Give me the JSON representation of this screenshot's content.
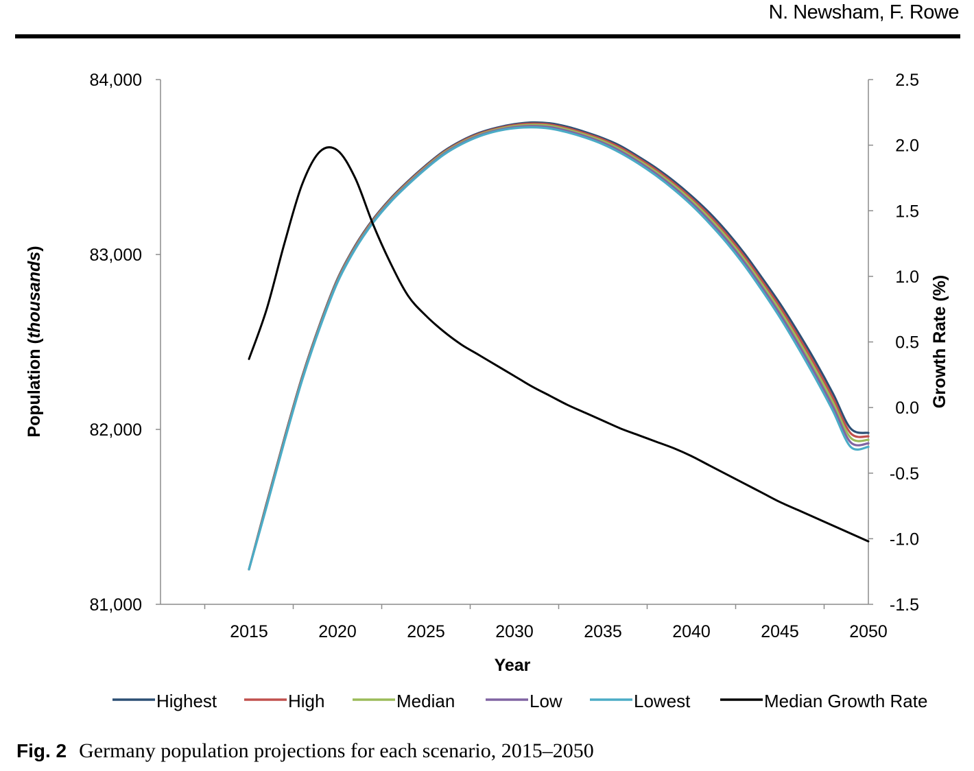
{
  "header": {
    "authors": "N. Newsham, F. Rowe"
  },
  "caption": {
    "fig": "Fig. 2",
    "text": "Germany population projections for each scenario, 2015–2050"
  },
  "chart_data": {
    "type": "line",
    "xlabel": "Year",
    "ylabel_left_main": "Population ",
    "ylabel_left_italic": "thousands",
    "ylabel_right": "Growth Rate (%)",
    "xlim": [
      2010,
      2050
    ],
    "ylim_left": [
      81000,
      84000
    ],
    "ylim_right": [
      -1.5,
      2.5
    ],
    "x_ticks": [
      2015,
      2020,
      2025,
      2030,
      2035,
      2040,
      2045,
      2050
    ],
    "x_tick_labels": [
      "2015",
      "2020",
      "2025",
      "2030",
      "2035",
      "2040",
      "2045",
      "2050"
    ],
    "y_left_ticks": [
      81000,
      82000,
      83000,
      84000
    ],
    "y_left_tick_labels": [
      "81,000",
      "82,000",
      "83,000",
      "84,000"
    ],
    "y_right_ticks": [
      -1.5,
      -1.0,
      -0.5,
      0.0,
      0.5,
      1.0,
      1.5,
      2.0,
      2.5
    ],
    "y_right_tick_labels": [
      "-1.5",
      "-1.0",
      "-0.5",
      "0.0",
      "0.5",
      "1.0",
      "1.5",
      "2.0",
      "2.5"
    ],
    "legend_position": "bottom",
    "x": [
      2015,
      2016,
      2017,
      2018,
      2019,
      2020,
      2021,
      2022,
      2023,
      2024,
      2025,
      2026,
      2027,
      2028,
      2029,
      2030,
      2031,
      2032,
      2033,
      2034,
      2035,
      2036,
      2037,
      2038,
      2039,
      2040,
      2041,
      2042,
      2043,
      2044,
      2045,
      2046,
      2047,
      2048,
      2049,
      2050
    ],
    "series": [
      {
        "name": "Highest",
        "axis": "left",
        "color": "#2c4f74",
        "values": [
          81200,
          81580,
          81950,
          82300,
          82600,
          82860,
          83050,
          83200,
          83320,
          83420,
          83510,
          83590,
          83650,
          83695,
          83725,
          83745,
          83755,
          83750,
          83730,
          83700,
          83665,
          83620,
          83560,
          83495,
          83420,
          83335,
          83240,
          83130,
          83005,
          82865,
          82720,
          82560,
          82390,
          82205,
          82005,
          81980
        ]
      },
      {
        "name": "High",
        "axis": "left",
        "color": "#c0504d",
        "values": [
          81200,
          81575,
          81945,
          82295,
          82595,
          82855,
          83045,
          83195,
          83315,
          83415,
          83505,
          83585,
          83645,
          83690,
          83720,
          83740,
          83748,
          83743,
          83722,
          83692,
          83657,
          83610,
          83550,
          83484,
          83408,
          83322,
          83225,
          83114,
          82988,
          82847,
          82700,
          82538,
          82366,
          82180,
          81978,
          81960
        ]
      },
      {
        "name": "Median",
        "axis": "left",
        "color": "#9bbb59",
        "values": [
          81200,
          81570,
          81940,
          82290,
          82590,
          82850,
          83040,
          83190,
          83310,
          83410,
          83500,
          83580,
          83640,
          83685,
          83715,
          83734,
          83741,
          83736,
          83714,
          83684,
          83648,
          83600,
          83540,
          83473,
          83396,
          83309,
          83210,
          83098,
          82971,
          82829,
          82680,
          82516,
          82342,
          82155,
          81952,
          81940
        ]
      },
      {
        "name": "Low",
        "axis": "left",
        "color": "#8064a2",
        "values": [
          81200,
          81565,
          81935,
          82285,
          82585,
          82845,
          83035,
          83185,
          83305,
          83405,
          83495,
          83575,
          83635,
          83680,
          83710,
          83728,
          83734,
          83728,
          83706,
          83676,
          83639,
          83590,
          83530,
          83462,
          83384,
          83296,
          83195,
          83082,
          82954,
          82811,
          82660,
          82494,
          82318,
          82130,
          81926,
          81920
        ]
      },
      {
        "name": "Lowest",
        "axis": "left",
        "color": "#4bacc6",
        "values": [
          81200,
          81560,
          81930,
          82280,
          82580,
          82840,
          83030,
          83180,
          83300,
          83400,
          83490,
          83570,
          83630,
          83675,
          83705,
          83722,
          83727,
          83720,
          83698,
          83668,
          83630,
          83580,
          83520,
          83451,
          83372,
          83283,
          83180,
          83066,
          82937,
          82793,
          82640,
          82472,
          82294,
          82105,
          81900,
          81900
        ]
      },
      {
        "name": "Median Growth Rate",
        "axis": "right",
        "color": "#000000",
        "values": [
          0.37,
          0.75,
          1.25,
          1.7,
          1.95,
          1.96,
          1.75,
          1.4,
          1.1,
          0.85,
          0.7,
          0.58,
          0.48,
          0.4,
          0.32,
          0.24,
          0.16,
          0.09,
          0.02,
          -0.04,
          -0.1,
          -0.16,
          -0.21,
          -0.26,
          -0.31,
          -0.37,
          -0.44,
          -0.51,
          -0.58,
          -0.65,
          -0.72,
          -0.78,
          -0.84,
          -0.9,
          -0.96,
          -1.02
        ]
      }
    ]
  }
}
